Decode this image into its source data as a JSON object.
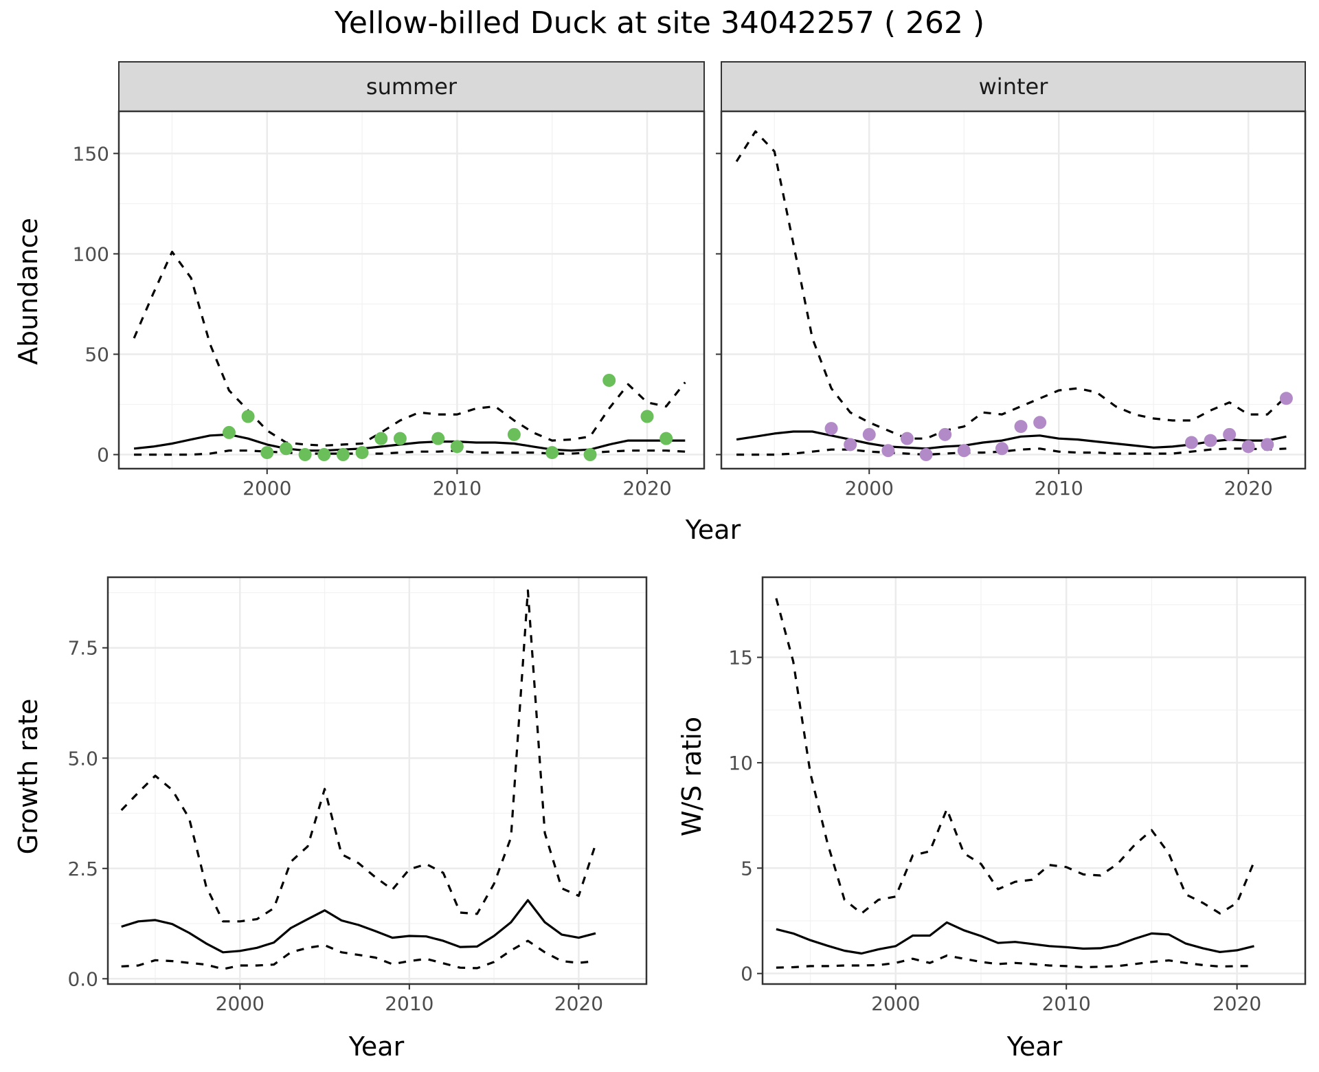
{
  "figure_title": "Yellow-billed Duck at site 34042257 ( 262 )",
  "colors": {
    "summer_points": "#6abf5a",
    "winter_points": "#b38ac8",
    "lines": "#000000",
    "strip": "#d9d9d9"
  },
  "chart_data": [
    {
      "id": "summer",
      "type": "line",
      "strip_label": "summer",
      "xlabel": "Year",
      "ylabel": "Abundance",
      "xlim": [
        1992.2,
        2023
      ],
      "ylim": [
        -7,
        171
      ],
      "xticks": [
        2000,
        2010,
        2020
      ],
      "yticks": [
        0,
        50,
        100,
        150
      ],
      "years": [
        1993,
        1994,
        1995,
        1996,
        1997,
        1998,
        1999,
        2000,
        2001,
        2002,
        2003,
        2004,
        2005,
        2006,
        2007,
        2008,
        2009,
        2010,
        2011,
        2012,
        2013,
        2014,
        2015,
        2016,
        2017,
        2018,
        2019,
        2020,
        2021,
        2022
      ],
      "mean": [
        3,
        4,
        5.5,
        7.5,
        9.5,
        10,
        8,
        5,
        3,
        2,
        2,
        2.5,
        3,
        4,
        5,
        6,
        6.5,
        6.5,
        6,
        6,
        5.5,
        4,
        2.5,
        2,
        2.5,
        5,
        7,
        7,
        7,
        7
      ],
      "lower": [
        0,
        0,
        0,
        0,
        0.5,
        2,
        2,
        1.5,
        1,
        0.5,
        0.5,
        0.5,
        0.5,
        0.5,
        1,
        1.5,
        1.5,
        2,
        1,
        1,
        1,
        1,
        0.5,
        0.5,
        1,
        1.5,
        2,
        2,
        2,
        1.5
      ],
      "upper": [
        58,
        80,
        101,
        88,
        55,
        32,
        22,
        12,
        6,
        5,
        4.5,
        5,
        5.5,
        11,
        17,
        21,
        20,
        20,
        23,
        24,
        17,
        11,
        7,
        7.5,
        9,
        23,
        35,
        26,
        24,
        36
      ],
      "points": {
        "x": [
          1998,
          1999,
          2000,
          2001,
          2002,
          2003,
          2004,
          2005,
          2006,
          2007,
          2009,
          2010,
          2013,
          2015,
          2017,
          2018,
          2020,
          2021
        ],
        "y": [
          11,
          19,
          1,
          3,
          0,
          0,
          0,
          1,
          8,
          8,
          8,
          4,
          10,
          1,
          0,
          37,
          19,
          8
        ]
      }
    },
    {
      "id": "winter",
      "type": "line",
      "strip_label": "winter",
      "xlabel": "Year",
      "ylabel": "Abundance",
      "xlim": [
        1992.2,
        2023
      ],
      "ylim": [
        -7,
        171
      ],
      "xticks": [
        2000,
        2010,
        2020
      ],
      "yticks": [
        0,
        50,
        100,
        150
      ],
      "years": [
        1993,
        1994,
        1995,
        1996,
        1997,
        1998,
        1999,
        2000,
        2001,
        2002,
        2003,
        2004,
        2005,
        2006,
        2007,
        2008,
        2009,
        2010,
        2011,
        2012,
        2013,
        2014,
        2015,
        2016,
        2017,
        2018,
        2019,
        2020,
        2021,
        2022
      ],
      "mean": [
        7.5,
        9,
        10.5,
        11.5,
        11.5,
        9.5,
        7.5,
        5.5,
        4,
        3.5,
        3,
        4,
        4.5,
        6,
        7,
        9,
        9.5,
        8,
        7.5,
        6.5,
        5.5,
        4.5,
        3.5,
        4,
        5,
        6.5,
        7.5,
        7,
        7,
        9
      ],
      "lower": [
        0,
        0,
        0,
        0.5,
        1.5,
        2.5,
        2.5,
        1.5,
        1,
        0.5,
        0,
        0.5,
        1,
        1,
        1.5,
        2.5,
        3,
        1.5,
        1,
        1,
        0.5,
        0.5,
        0.5,
        0.5,
        1.5,
        2.5,
        3,
        3,
        2.5,
        3
      ],
      "upper": [
        146,
        161,
        151,
        105,
        58,
        33,
        21,
        16,
        12,
        8,
        8,
        12,
        14,
        21,
        20,
        24,
        28,
        32,
        33,
        31,
        24,
        20,
        18,
        17,
        17,
        22,
        26,
        20,
        20,
        29
      ],
      "points": {
        "x": [
          1998,
          1999,
          2000,
          2001,
          2002,
          2003,
          2004,
          2005,
          2007,
          2008,
          2009,
          2017,
          2018,
          2019,
          2020,
          2021,
          2022
        ],
        "y": [
          13,
          5,
          10,
          2,
          8,
          0,
          10,
          2,
          3,
          14,
          16,
          6,
          7,
          10,
          4,
          5,
          28
        ]
      }
    },
    {
      "id": "growth",
      "type": "line",
      "xlabel": "Year",
      "ylabel": "Growth rate",
      "xlim": [
        1992.2,
        2024
      ],
      "ylim": [
        -0.12,
        9.1
      ],
      "xticks": [
        2000,
        2010,
        2020
      ],
      "yticks": [
        0.0,
        2.5,
        5.0,
        7.5
      ],
      "ytick_labels": [
        "0.0",
        "2.5",
        "5.0",
        "7.5"
      ],
      "years": [
        1993,
        1994,
        1995,
        1996,
        1997,
        1998,
        1999,
        2000,
        2001,
        2002,
        2003,
        2004,
        2005,
        2006,
        2007,
        2008,
        2009,
        2010,
        2011,
        2012,
        2013,
        2014,
        2015,
        2016,
        2017,
        2018,
        2019,
        2020,
        2021
      ],
      "mean": [
        1.18,
        1.3,
        1.33,
        1.24,
        1.04,
        0.8,
        0.6,
        0.63,
        0.7,
        0.82,
        1.15,
        1.35,
        1.55,
        1.32,
        1.22,
        1.08,
        0.93,
        0.97,
        0.96,
        0.86,
        0.72,
        0.73,
        0.97,
        1.28,
        1.78,
        1.28,
        1.0,
        0.93,
        1.03
      ],
      "lower": [
        0.28,
        0.3,
        0.42,
        0.4,
        0.36,
        0.32,
        0.22,
        0.3,
        0.3,
        0.32,
        0.6,
        0.7,
        0.76,
        0.6,
        0.54,
        0.48,
        0.33,
        0.4,
        0.45,
        0.35,
        0.25,
        0.24,
        0.38,
        0.64,
        0.86,
        0.6,
        0.4,
        0.36,
        0.4
      ],
      "upper": [
        3.82,
        4.22,
        4.6,
        4.28,
        3.64,
        2.1,
        1.3,
        1.3,
        1.35,
        1.6,
        2.65,
        3.0,
        4.3,
        2.82,
        2.62,
        2.3,
        2.02,
        2.48,
        2.6,
        2.4,
        1.5,
        1.47,
        2.15,
        3.2,
        8.8,
        3.3,
        2.05,
        1.88,
        3.05
      ]
    },
    {
      "id": "ratio",
      "type": "line",
      "xlabel": "Year",
      "ylabel": "W/S ratio",
      "xlim": [
        1992.2,
        2024
      ],
      "ylim": [
        -0.5,
        18.8
      ],
      "xticks": [
        2000,
        2010,
        2020
      ],
      "yticks": [
        0,
        5,
        10,
        15
      ],
      "years": [
        1993,
        1994,
        1995,
        1996,
        1997,
        1998,
        1999,
        2000,
        2001,
        2002,
        2003,
        2004,
        2005,
        2006,
        2007,
        2008,
        2009,
        2010,
        2011,
        2012,
        2013,
        2014,
        2015,
        2016,
        2017,
        2018,
        2019,
        2020,
        2021
      ],
      "mean": [
        2.1,
        1.9,
        1.58,
        1.32,
        1.08,
        0.95,
        1.15,
        1.3,
        1.8,
        1.8,
        2.42,
        2.05,
        1.78,
        1.45,
        1.5,
        1.4,
        1.3,
        1.25,
        1.18,
        1.2,
        1.35,
        1.65,
        1.9,
        1.85,
        1.42,
        1.2,
        1.02,
        1.1,
        1.3
      ],
      "lower": [
        0.28,
        0.3,
        0.35,
        0.35,
        0.38,
        0.38,
        0.4,
        0.5,
        0.7,
        0.5,
        0.85,
        0.7,
        0.55,
        0.45,
        0.5,
        0.45,
        0.38,
        0.35,
        0.3,
        0.32,
        0.35,
        0.45,
        0.55,
        0.62,
        0.5,
        0.4,
        0.33,
        0.35,
        0.35
      ],
      "upper": [
        17.8,
        14.8,
        9.5,
        6.2,
        3.5,
        2.85,
        3.5,
        3.65,
        5.6,
        5.8,
        7.8,
        5.7,
        5.2,
        4.0,
        4.35,
        4.45,
        5.15,
        5.05,
        4.7,
        4.65,
        5.2,
        6.1,
        6.8,
        5.7,
        3.75,
        3.35,
        2.85,
        3.35,
        5.3
      ]
    }
  ]
}
